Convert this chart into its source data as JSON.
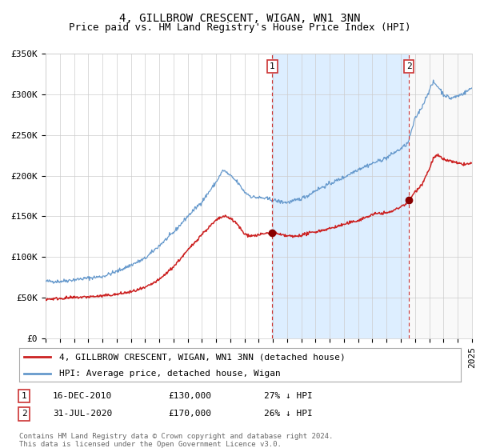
{
  "title": "4, GILLBROW CRESCENT, WIGAN, WN1 3NN",
  "subtitle": "Price paid vs. HM Land Registry's House Price Index (HPI)",
  "footer": "Contains HM Land Registry data © Crown copyright and database right 2024.\nThis data is licensed under the Open Government Licence v3.0.",
  "legend_line1": "4, GILLBROW CRESCENT, WIGAN, WN1 3NN (detached house)",
  "legend_line2": "HPI: Average price, detached house, Wigan",
  "marker1_date": "16-DEC-2010",
  "marker1_price": "£130,000",
  "marker1_hpi": "27% ↓ HPI",
  "marker1_year": 2010.96,
  "marker1_val": 130000,
  "marker2_date": "31-JUL-2020",
  "marker2_price": "£170,000",
  "marker2_hpi": "26% ↓ HPI",
  "marker2_year": 2020.58,
  "marker2_val": 170000,
  "xmin": 1995,
  "xmax": 2025,
  "ymin": 0,
  "ymax": 350000,
  "hpi_color": "#6699cc",
  "price_color": "#cc2222",
  "dot_color": "#880000",
  "background_color": "#ffffff",
  "shade_color": "#ddeeff",
  "grid_color": "#cccccc",
  "title_fontsize": 10,
  "subtitle_fontsize": 9,
  "axis_fontsize": 8,
  "yticks": [
    0,
    50000,
    100000,
    150000,
    200000,
    250000,
    300000,
    350000
  ],
  "ytick_labels": [
    "£0",
    "£50K",
    "£100K",
    "£150K",
    "£200K",
    "£250K",
    "£300K",
    "£350K"
  ]
}
